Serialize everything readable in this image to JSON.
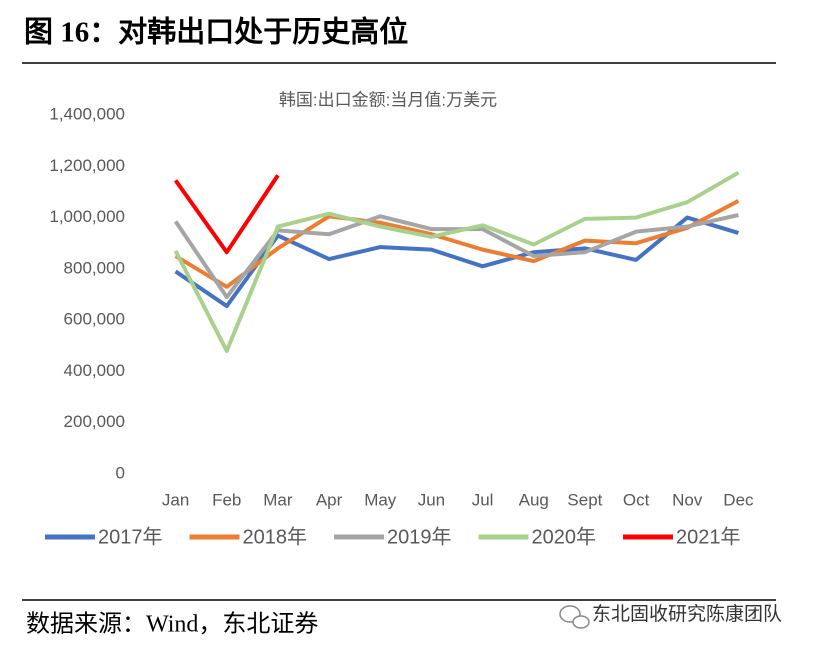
{
  "header": {
    "title": "图 16：对韩出口处于历史高位"
  },
  "footer": {
    "source": "数据来源：Wind，东北证券",
    "watermark": "东北固收研究陈康团队"
  },
  "chart_data": {
    "type": "line",
    "title": "韩国:出口金额:当月值:万美元",
    "categories": [
      "Jan",
      "Feb",
      "Mar",
      "Apr",
      "May",
      "Jun",
      "Jul",
      "Aug",
      "Sept",
      "Oct",
      "Nov",
      "Dec"
    ],
    "series": [
      {
        "name": "2017年",
        "color": "#4472c4",
        "values": [
          790000,
          655000,
          930000,
          838000,
          885000,
          875000,
          810000,
          865000,
          880000,
          835000,
          1000000,
          940000
        ]
      },
      {
        "name": "2018年",
        "color": "#ed7d31",
        "values": [
          850000,
          730000,
          880000,
          1005000,
          980000,
          935000,
          875000,
          830000,
          910000,
          900000,
          960000,
          1065000
        ]
      },
      {
        "name": "2019年",
        "color": "#a5a5a5",
        "values": [
          985000,
          690000,
          950000,
          935000,
          1005000,
          955000,
          955000,
          850000,
          865000,
          945000,
          965000,
          1010000
        ]
      },
      {
        "name": "2020年",
        "color": "#a9d18e",
        "values": [
          870000,
          480000,
          965000,
          1015000,
          965000,
          925000,
          970000,
          895000,
          995000,
          1000000,
          1060000,
          1175000
        ]
      },
      {
        "name": "2021年",
        "color": "#ff0000",
        "values": [
          1145000,
          865000,
          1165000,
          null,
          null,
          null,
          null,
          null,
          null,
          null,
          null,
          null
        ]
      }
    ],
    "ylim": [
      0,
      1400000
    ],
    "yticks": [
      0,
      {
        "value": 200000,
        "label": "200,000"
      },
      {
        "value": 400000,
        "label": "400,000"
      },
      {
        "value": 600000,
        "label": "600,000"
      },
      {
        "value": 800000,
        "label": "800,000"
      },
      {
        "value": 1000000,
        "label": "1,000,000"
      },
      {
        "value": 1200000,
        "label": "1,200,000"
      },
      {
        "value": 1400000,
        "label": "1,400,000"
      }
    ],
    "grid": false,
    "legend": "bottom"
  }
}
